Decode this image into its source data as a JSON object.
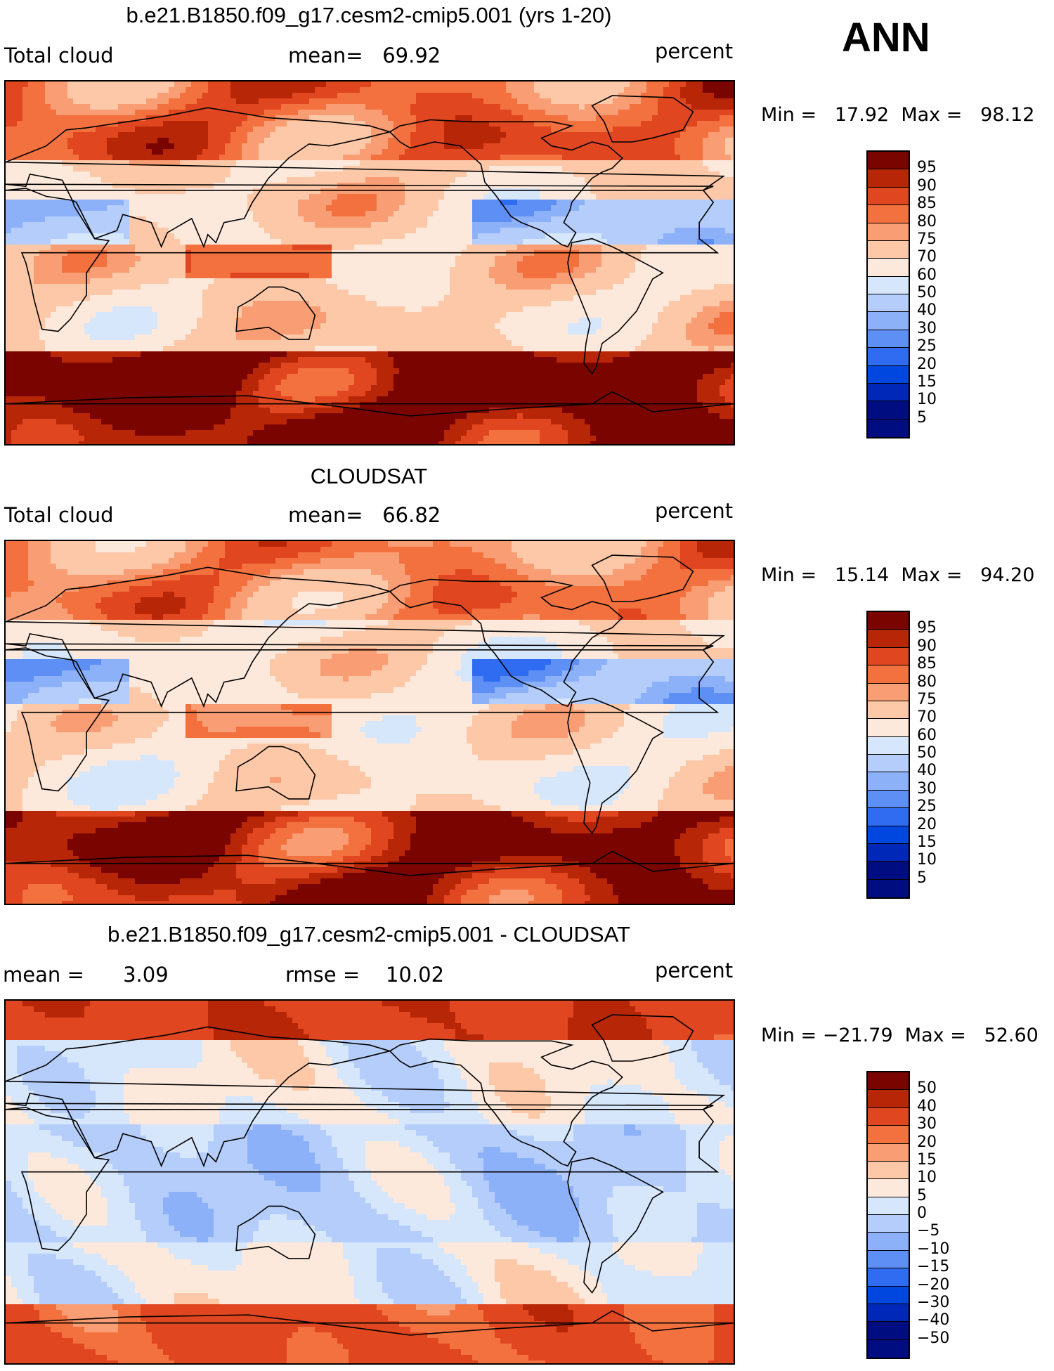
{
  "season": "ANN",
  "panels": [
    {
      "title": "b.e21.B1850.f09_g17.cesm2-cmip5.001 (yrs 1-20)",
      "left_label": "Total cloud",
      "stat1": "mean=   69.92",
      "stat2": "",
      "units": "percent",
      "minmax": "Min =   17.92  Max =   98.12",
      "field": "model",
      "colorbar": [
        "95",
        "90",
        "85",
        "80",
        "75",
        "70",
        "60",
        "50",
        "40",
        "30",
        "25",
        "20",
        "15",
        "10",
        "5"
      ]
    },
    {
      "title": "CLOUDSAT",
      "left_label": "Total cloud",
      "stat1": "mean=   66.82",
      "stat2": "",
      "units": "percent",
      "minmax": "Min =   15.14  Max =   94.20",
      "field": "obs",
      "colorbar": [
        "95",
        "90",
        "85",
        "80",
        "75",
        "70",
        "60",
        "50",
        "40",
        "30",
        "25",
        "20",
        "15",
        "10",
        "5"
      ]
    },
    {
      "title": "b.e21.B1850.f09_g17.cesm2-cmip5.001 - CLOUDSAT",
      "left_label": "mean =      3.09",
      "stat1": "rmse =    10.02",
      "stat2": "",
      "units": "percent",
      "minmax": "Min = −21.79  Max =   52.60",
      "field": "diff",
      "colorbar": [
        "50",
        "40",
        "30",
        "20",
        "15",
        "10",
        "5",
        "0",
        "−5",
        "−10",
        "−15",
        "−20",
        "−30",
        "−40",
        "−50"
      ]
    }
  ],
  "colors": {
    "abs_scale": [
      "#000d80",
      "#0028b8",
      "#0047e0",
      "#2f6cf2",
      "#5e8ff5",
      "#8db1f8",
      "#b4cdfa",
      "#d6e6fb",
      "#fde9dc",
      "#fcc8a8",
      "#f99e74",
      "#f2713f",
      "#e0461f",
      "#b82608",
      "#7a0500"
    ],
    "diff_scale": [
      "#000d80",
      "#0028b8",
      "#0047e0",
      "#2f6cf2",
      "#5e8ff5",
      "#8db1f8",
      "#b4cdfa",
      "#d6e6fb",
      "#fde9dc",
      "#fcc8a8",
      "#f99e74",
      "#f2713f",
      "#e0461f",
      "#b82608",
      "#7a0500"
    ],
    "land_outline": "#000000"
  }
}
